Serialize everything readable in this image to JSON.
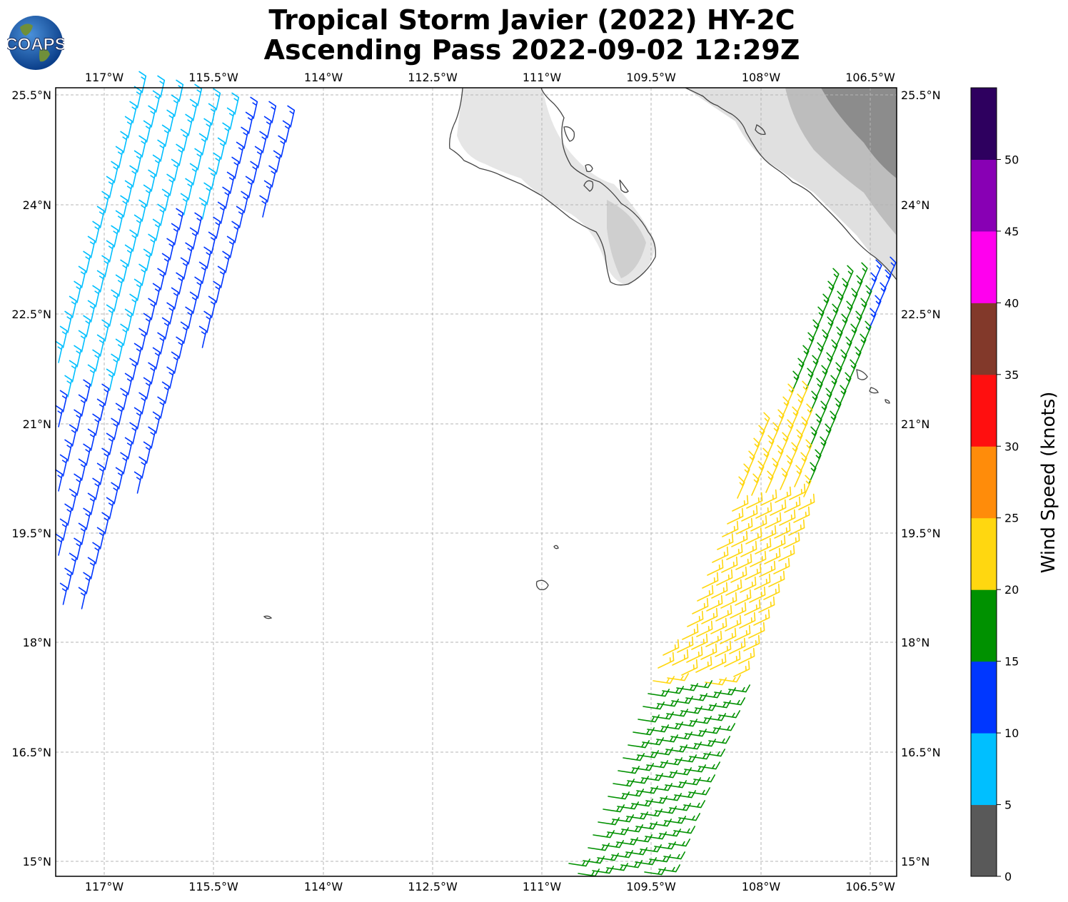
{
  "title": {
    "line1": "Tropical Storm Javier (2022) HY-2C",
    "line2": "Ascending Pass 2022-09-02 12:29Z"
  },
  "logo": {
    "text": "COAPS",
    "icon": "globe-logo-icon"
  },
  "map": {
    "lon_labels": [
      "117°W",
      "115.5°W",
      "114°W",
      "112.5°W",
      "111°W",
      "109.5°W",
      "108°W",
      "106.5°W"
    ],
    "lat_labels": [
      "25.5°N",
      "24°N",
      "22.5°N",
      "21°N",
      "19.5°N",
      "18°N",
      "16.5°N",
      "15°N"
    ],
    "gridlines": true
  },
  "colorbar": {
    "title": "Wind Speed (knots)",
    "ticks": [
      "0",
      "5",
      "10",
      "15",
      "20",
      "25",
      "30",
      "35",
      "40",
      "45",
      "50"
    ],
    "bins": [
      {
        "range": "0-5",
        "color": "#595959"
      },
      {
        "range": "5-10",
        "color": "#00bfff"
      },
      {
        "range": "10-15",
        "color": "#0037ff"
      },
      {
        "range": "15-20",
        "color": "#009100"
      },
      {
        "range": "20-25",
        "color": "#ffd710"
      },
      {
        "range": "25-30",
        "color": "#ff8c0a"
      },
      {
        "range": "30-35",
        "color": "#ff0f0f"
      },
      {
        "range": "35-40",
        "color": "#82392a"
      },
      {
        "range": "40-45",
        "color": "#ff00ee"
      },
      {
        "range": "45-50",
        "color": "#8800b4"
      },
      {
        "range": "50+",
        "color": "#2e005f"
      }
    ]
  }
}
